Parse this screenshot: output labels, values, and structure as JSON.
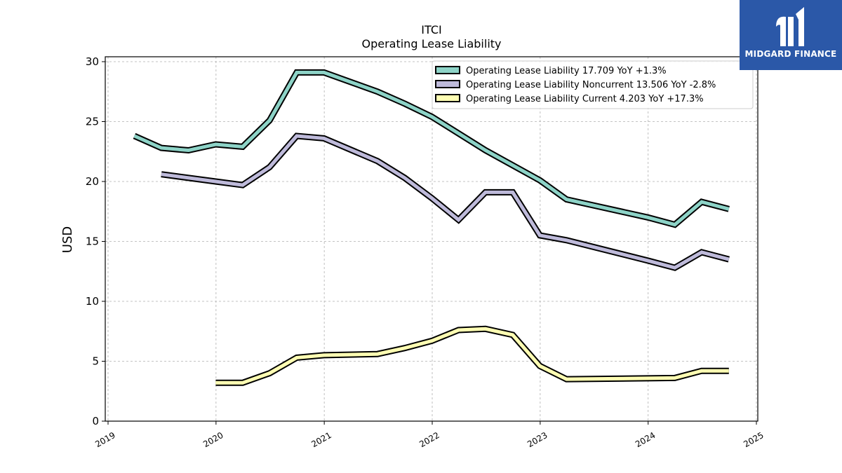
{
  "chart_data": {
    "type": "line",
    "title": "ITCI",
    "subtitle": "Operating Lease Liability",
    "ylabel": "USD",
    "ylim": [
      0,
      30
    ],
    "xlim": [
      "2019-01-01",
      "2025-01-01"
    ],
    "yticks": [
      0,
      5,
      10,
      15,
      20,
      25,
      30
    ],
    "xticks": [
      "2019",
      "2020",
      "2021",
      "2022",
      "2023",
      "2024",
      "2025"
    ],
    "grid": true,
    "legend_position": "top-right",
    "series": [
      {
        "name": "Operating Lease Liability",
        "legend": "Operating Lease Liability  17.709 YoY +1.3%",
        "color": "#8dd3c7",
        "points": [
          [
            "2019-03-31",
            23.8
          ],
          [
            "2019-06-30",
            22.8
          ],
          [
            "2019-09-30",
            22.6
          ],
          [
            "2019-12-31",
            23.1
          ],
          [
            "2020-03-31",
            22.9
          ],
          [
            "2020-06-30",
            25.1
          ],
          [
            "2020-09-30",
            29.1
          ],
          [
            "2020-12-31",
            29.1
          ],
          [
            "2021-06-30",
            27.5
          ],
          [
            "2021-09-30",
            26.5
          ],
          [
            "2021-12-31",
            25.4
          ],
          [
            "2022-06-30",
            22.6
          ],
          [
            "2022-12-31",
            20.1
          ],
          [
            "2023-03-31",
            18.5
          ],
          [
            "2023-12-31",
            17.0
          ],
          [
            "2024-03-31",
            16.4
          ],
          [
            "2024-06-30",
            18.3
          ],
          [
            "2024-09-30",
            17.7
          ]
        ]
      },
      {
        "name": "Operating Lease Liability Noncurrent",
        "legend": "Operating Lease Liability Noncurrent  13.506 YoY -2.8%",
        "color": "#bebada",
        "points": [
          [
            "2019-06-30",
            20.6
          ],
          [
            "2019-12-31",
            20.0
          ],
          [
            "2020-03-31",
            19.7
          ],
          [
            "2020-06-30",
            21.2
          ],
          [
            "2020-09-30",
            23.8
          ],
          [
            "2020-12-31",
            23.6
          ],
          [
            "2021-06-30",
            21.7
          ],
          [
            "2021-09-30",
            20.3
          ],
          [
            "2021-12-31",
            18.6
          ],
          [
            "2022-03-31",
            16.8
          ],
          [
            "2022-06-30",
            19.1
          ],
          [
            "2022-09-30",
            19.1
          ],
          [
            "2022-12-31",
            15.5
          ],
          [
            "2023-03-31",
            15.1
          ],
          [
            "2023-12-31",
            13.4
          ],
          [
            "2024-03-31",
            12.8
          ],
          [
            "2024-06-30",
            14.1
          ],
          [
            "2024-09-30",
            13.5
          ]
        ]
      },
      {
        "name": "Operating Lease Liability Current",
        "legend": "Operating Lease Liability Current  4.203 YoY +17.3%",
        "color": "#ffffb3",
        "points": [
          [
            "2019-12-31",
            3.2
          ],
          [
            "2020-03-31",
            3.2
          ],
          [
            "2020-06-30",
            4.0
          ],
          [
            "2020-09-30",
            5.3
          ],
          [
            "2020-12-31",
            5.5
          ],
          [
            "2021-06-30",
            5.6
          ],
          [
            "2021-09-30",
            6.1
          ],
          [
            "2021-12-31",
            6.7
          ],
          [
            "2022-03-31",
            7.6
          ],
          [
            "2022-06-30",
            7.7
          ],
          [
            "2022-09-30",
            7.2
          ],
          [
            "2022-12-31",
            4.6
          ],
          [
            "2023-03-31",
            3.5
          ],
          [
            "2024-03-31",
            3.6
          ],
          [
            "2024-06-30",
            4.2
          ],
          [
            "2024-09-30",
            4.2
          ]
        ]
      }
    ]
  },
  "logo": {
    "text": "MIDGARD FINANCE",
    "icon": "midgard-logo-icon",
    "color": "#2b58a8"
  }
}
